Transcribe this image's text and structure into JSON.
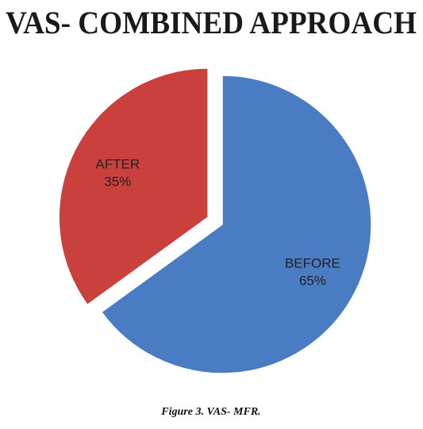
{
  "chart_data": {
    "type": "pie",
    "title": "VAS- COMBINED APPROACH",
    "categories": [
      "BEFORE",
      "AFTER"
    ],
    "values": [
      65,
      35
    ],
    "value_labels": [
      "65%",
      "35%"
    ],
    "colors": [
      "#4a7cc4",
      "#c9403d"
    ],
    "exploded": [
      false,
      true
    ],
    "caption": "Figure 3. VAS- MFR."
  }
}
